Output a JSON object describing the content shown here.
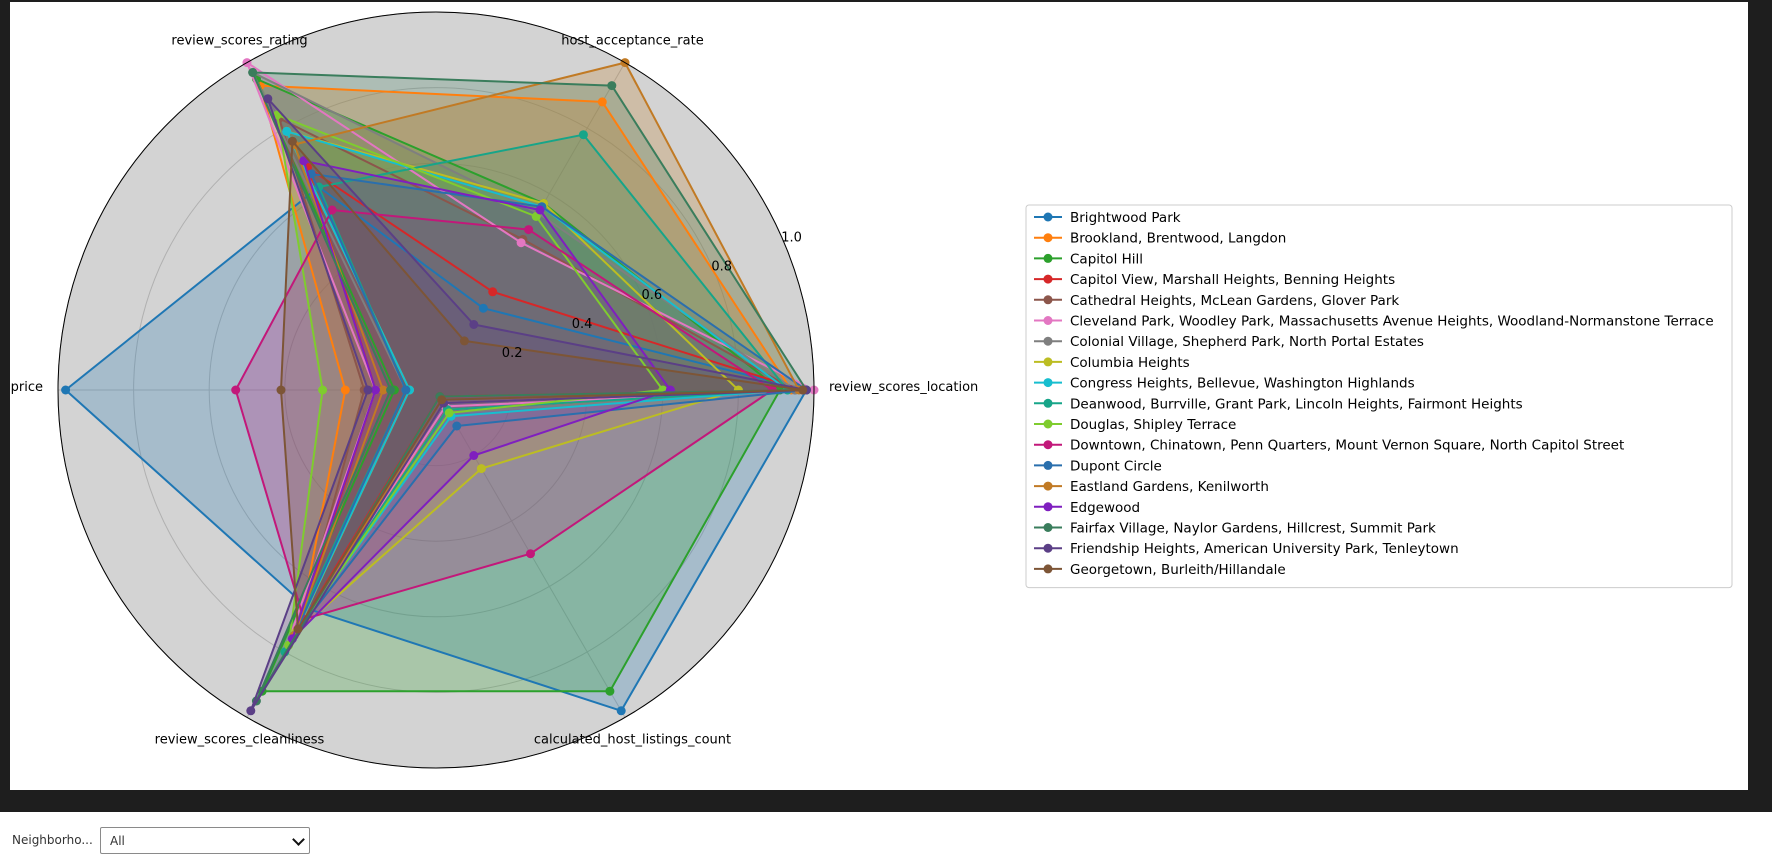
{
  "chart_data": {
    "type": "radar",
    "axes": [
      "review_scores_location",
      "host_acceptance_rate",
      "review_scores_rating",
      "price",
      "review_scores_cleanliness",
      "calculated_host_listings_count"
    ],
    "radial_ticks": [
      "0.2",
      "0.4",
      "0.6",
      "0.8",
      "1.0"
    ],
    "rlim": [
      0,
      1.0
    ],
    "grid": true,
    "legend_position": "right",
    "series": [
      {
        "name": "Brightwood Park",
        "color": "#1f77b4",
        "values": [
          0.98,
          0.25,
          0.62,
          0.98,
          0.67,
          0.98
        ]
      },
      {
        "name": "Brookland, Brentwood, Langdon",
        "color": "#ff7f0e",
        "values": [
          0.94,
          0.88,
          0.93,
          0.24,
          0.72,
          0.06
        ]
      },
      {
        "name": "Capitol Hill",
        "color": "#2ca02c",
        "values": [
          0.91,
          0.57,
          0.95,
          0.11,
          0.92,
          0.92
        ]
      },
      {
        "name": "Capitol View, Marshall Heights, Benning Heights",
        "color": "#d62728",
        "values": [
          0.97,
          0.3,
          0.68,
          0.16,
          0.74,
          0.02
        ]
      },
      {
        "name": "Cathedral Heights, McLean Gardens, Glover Park",
        "color": "#8c564b",
        "values": [
          0.95,
          0.46,
          0.83,
          0.19,
          0.72,
          0.05
        ]
      },
      {
        "name": "Cleveland Park, Woodley Park, Massachusetts Avenue Heights, Woodland-Normanstone Terrace",
        "color": "#e377c2",
        "values": [
          1.0,
          0.45,
          1.0,
          0.16,
          0.8,
          0.05
        ]
      },
      {
        "name": "Colonial Village, Shepherd Park, North Portal Estates",
        "color": "#7f7f7f",
        "values": [
          0.95,
          0.54,
          0.97,
          0.08,
          0.72,
          0.07
        ]
      },
      {
        "name": "Columbia Heights",
        "color": "#bcbd22",
        "values": [
          0.8,
          0.57,
          0.79,
          0.07,
          0.74,
          0.24
        ]
      },
      {
        "name": "Congress Heights, Bellevue, Washington Highlands",
        "color": "#17becf",
        "values": [
          0.93,
          0.56,
          0.79,
          0.07,
          0.75,
          0.08
        ]
      },
      {
        "name": "Deanwood, Burrville, Grant Park, Lincoln Heights, Fairmont Heights",
        "color": "#17a589",
        "values": [
          0.93,
          0.78,
          0.62,
          0.08,
          0.8,
          0.06
        ]
      },
      {
        "name": "Douglas, Shipley Terrace",
        "color": "#7fcc2e",
        "values": [
          0.6,
          0.53,
          0.84,
          0.3,
          0.78,
          0.07
        ]
      },
      {
        "name": "Downtown, Chinatown, Penn Quarters, Mount Vernon Square, North Capitol Street",
        "color": "#c2187a",
        "values": [
          0.89,
          0.49,
          0.55,
          0.53,
          0.7,
          0.5
        ]
      },
      {
        "name": "Dupont Circle",
        "color": "#2a6fad",
        "values": [
          0.98,
          0.56,
          0.66,
          0.08,
          0.75,
          0.11
        ]
      },
      {
        "name": "Eastland Gardens, Kenilworth",
        "color": "#c17a24",
        "values": [
          0.96,
          1.0,
          0.75,
          0.14,
          0.75,
          0.04
        ]
      },
      {
        "name": "Edgewood",
        "color": "#7f1fbf",
        "values": [
          0.62,
          0.55,
          0.7,
          0.16,
          0.76,
          0.2
        ]
      },
      {
        "name": "Fairfax Village, Naylor Gardens, Hillcrest, Summit Park",
        "color": "#3a7d5c",
        "values": [
          0.98,
          0.93,
          0.97,
          0.12,
          0.95,
          0.02
        ]
      },
      {
        "name": "Friendship Heights, American University Park, Tenleytown",
        "color": "#5b3f86",
        "values": [
          0.98,
          0.2,
          0.89,
          0.18,
          0.98,
          0.04
        ]
      },
      {
        "name": "Georgetown, Burleith/Hillandale",
        "color": "#7d5536",
        "values": [
          0.97,
          0.15,
          0.76,
          0.41,
          0.73,
          0.03
        ]
      }
    ]
  },
  "controls": {
    "filter_label": "Neighborho...",
    "filter_value": "All"
  }
}
